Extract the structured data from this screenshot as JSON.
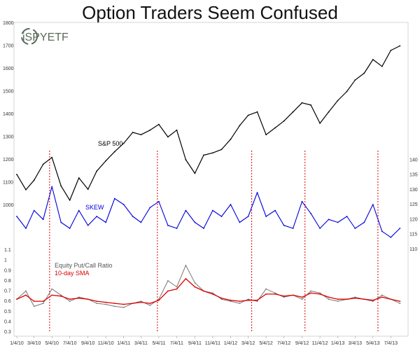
{
  "chart_data": {
    "type": "line",
    "title": "Option Traders Seem Confused",
    "logo_text": "iSPYETF",
    "x_tick_labels": [
      "1/4/10",
      "3/4/10",
      "5/4/10",
      "7/4/10",
      "9/4/10",
      "11/4/10",
      "1/4/11",
      "3/4/11",
      "5/4/11",
      "7/4/11",
      "9/4/11",
      "11/4/11",
      "1/4/12",
      "3/4/12",
      "5/4/12",
      "7/4/12",
      "9/4/12",
      "11/4/12",
      "1/4/13",
      "3/4/13",
      "5/4/13",
      "7/4/13"
    ],
    "sp500": {
      "name": "S&P 500",
      "color": "#000000",
      "ylim": [
        1000,
        1800
      ],
      "ticks": [
        "1800",
        "1700",
        "1600",
        "1500",
        "1400",
        "1300",
        "1200",
        "1100",
        "1000"
      ],
      "x": [
        "1/4/10",
        "2/4/10",
        "3/4/10",
        "4/4/10",
        "5/4/10",
        "6/4/10",
        "7/4/10",
        "8/4/10",
        "9/4/10",
        "10/4/10",
        "11/4/10",
        "12/4/10",
        "1/4/11",
        "2/4/11",
        "3/4/11",
        "4/4/11",
        "5/4/11",
        "6/4/11",
        "7/4/11",
        "8/4/11",
        "9/4/11",
        "10/4/11",
        "11/4/11",
        "12/4/11",
        "1/4/12",
        "2/4/12",
        "3/4/12",
        "4/4/12",
        "5/4/12",
        "6/4/12",
        "7/4/12",
        "8/4/12",
        "9/4/12",
        "10/4/12",
        "11/4/12",
        "12/4/12",
        "1/4/13",
        "2/4/13",
        "3/4/13",
        "4/4/13",
        "5/4/13",
        "6/4/13",
        "7/4/13",
        "8/4/13"
      ],
      "values": [
        1135,
        1068,
        1110,
        1180,
        1210,
        1085,
        1022,
        1120,
        1070,
        1150,
        1195,
        1235,
        1272,
        1320,
        1310,
        1330,
        1355,
        1300,
        1330,
        1200,
        1140,
        1220,
        1230,
        1245,
        1290,
        1350,
        1395,
        1410,
        1310,
        1340,
        1370,
        1410,
        1450,
        1440,
        1360,
        1410,
        1460,
        1500,
        1550,
        1580,
        1640,
        1610,
        1680,
        1700
      ]
    },
    "skew": {
      "name": "SKEW",
      "color": "#0000dd",
      "ylim": [
        105,
        145
      ],
      "ticks": [
        "140",
        "135",
        "130",
        "125",
        "120",
        "115",
        "110"
      ],
      "x": [
        "1/4/10",
        "2/4/10",
        "3/4/10",
        "4/4/10",
        "5/4/10",
        "6/4/10",
        "7/4/10",
        "8/4/10",
        "9/4/10",
        "10/4/10",
        "11/4/10",
        "12/4/10",
        "1/4/11",
        "2/4/11",
        "3/4/11",
        "4/4/11",
        "5/4/11",
        "6/4/11",
        "7/4/11",
        "8/4/11",
        "9/4/11",
        "10/4/11",
        "11/4/11",
        "12/4/11",
        "1/4/12",
        "2/4/12",
        "3/4/12",
        "4/4/12",
        "5/4/12",
        "6/4/12",
        "7/4/12",
        "8/4/12",
        "9/4/12",
        "10/4/12",
        "11/4/12",
        "12/4/12",
        "1/4/13",
        "2/4/13",
        "3/4/13",
        "4/4/13",
        "5/4/13",
        "6/4/13",
        "7/4/13",
        "8/4/13"
      ],
      "values": [
        121,
        117,
        123,
        120,
        131,
        119,
        117,
        123,
        118,
        121,
        119,
        127,
        125,
        121,
        119,
        124,
        126,
        118,
        117,
        123,
        119,
        117,
        123,
        121,
        125,
        119,
        121,
        129,
        121,
        123,
        118,
        117,
        126,
        122,
        117,
        120,
        119,
        121,
        117,
        119,
        125,
        116,
        114,
        117
      ]
    },
    "putcall": {
      "name": "Equity Put/Call Ratio",
      "color": "#777777",
      "ylim": [
        0.3,
        1.1
      ],
      "ticks": [
        "1.1",
        "1",
        "0.9",
        "0.8",
        "0.7",
        "0.6",
        "0.5",
        "0.4",
        "0.3"
      ],
      "x": [
        "1/4/10",
        "2/4/10",
        "3/4/10",
        "4/4/10",
        "5/4/10",
        "6/4/10",
        "7/4/10",
        "8/4/10",
        "9/4/10",
        "10/4/10",
        "11/4/10",
        "12/4/10",
        "1/4/11",
        "2/4/11",
        "3/4/11",
        "4/4/11",
        "5/4/11",
        "6/4/11",
        "7/4/11",
        "8/4/11",
        "9/4/11",
        "10/4/11",
        "11/4/11",
        "12/4/11",
        "1/4/12",
        "2/4/12",
        "3/4/12",
        "4/4/12",
        "5/4/12",
        "6/4/12",
        "7/4/12",
        "8/4/12",
        "9/4/12",
        "10/4/12",
        "11/4/12",
        "12/4/12",
        "1/4/13",
        "2/4/13",
        "3/4/13",
        "4/4/13",
        "5/4/13",
        "6/4/13",
        "7/4/13",
        "8/4/13"
      ],
      "values": [
        0.62,
        0.7,
        0.55,
        0.58,
        0.72,
        0.66,
        0.6,
        0.64,
        0.62,
        0.58,
        0.57,
        0.55,
        0.54,
        0.58,
        0.6,
        0.56,
        0.62,
        0.8,
        0.74,
        0.95,
        0.78,
        0.7,
        0.68,
        0.62,
        0.6,
        0.58,
        0.62,
        0.6,
        0.72,
        0.68,
        0.64,
        0.66,
        0.62,
        0.7,
        0.68,
        0.62,
        0.6,
        0.62,
        0.64,
        0.62,
        0.6,
        0.66,
        0.62,
        0.58
      ]
    },
    "sma": {
      "name": "10-day SMA",
      "color": "#dd0000",
      "x": [
        "1/4/10",
        "2/4/10",
        "3/4/10",
        "4/4/10",
        "5/4/10",
        "6/4/10",
        "7/4/10",
        "8/4/10",
        "9/4/10",
        "10/4/10",
        "11/4/10",
        "12/4/10",
        "1/4/11",
        "2/4/11",
        "3/4/11",
        "4/4/11",
        "5/4/11",
        "6/4/11",
        "7/4/11",
        "8/4/11",
        "9/4/11",
        "10/4/11",
        "11/4/11",
        "12/4/11",
        "1/4/12",
        "2/4/12",
        "3/4/12",
        "4/4/12",
        "5/4/12",
        "6/4/12",
        "7/4/12",
        "8/4/12",
        "9/4/12",
        "10/4/12",
        "11/4/12",
        "12/4/12",
        "1/4/13",
        "2/4/13",
        "3/4/13",
        "4/4/13",
        "5/4/13",
        "6/4/13",
        "7/4/13",
        "8/4/13"
      ],
      "values": [
        0.62,
        0.66,
        0.6,
        0.6,
        0.66,
        0.65,
        0.62,
        0.63,
        0.62,
        0.6,
        0.59,
        0.58,
        0.57,
        0.58,
        0.59,
        0.58,
        0.61,
        0.7,
        0.72,
        0.82,
        0.74,
        0.7,
        0.67,
        0.63,
        0.61,
        0.6,
        0.61,
        0.61,
        0.67,
        0.67,
        0.65,
        0.66,
        0.64,
        0.68,
        0.67,
        0.64,
        0.62,
        0.62,
        0.63,
        0.62,
        0.61,
        0.64,
        0.62,
        0.6
      ]
    },
    "event_lines": [
      "4/26/10",
      "4/29/11",
      "3/16/12",
      "9/14/12",
      "5/21/13"
    ],
    "event_line_color": "#dd0000",
    "grid": false,
    "legend": "inline labels"
  }
}
